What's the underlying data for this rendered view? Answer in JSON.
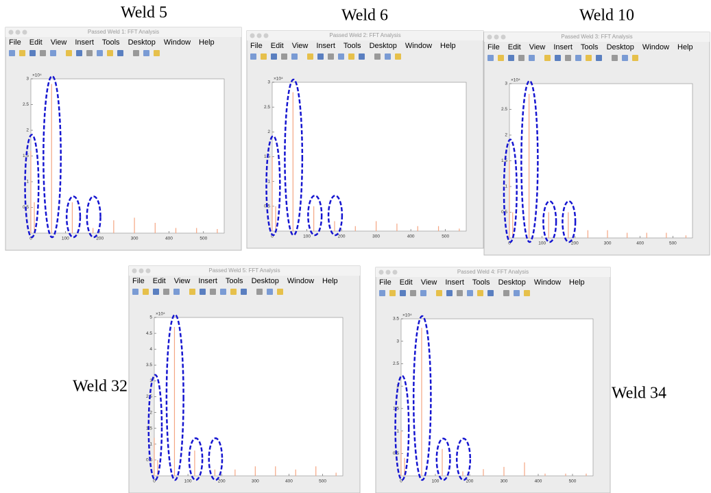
{
  "menu": [
    "File",
    "Edit",
    "View",
    "Insert",
    "Tools",
    "Desktop",
    "Window",
    "Help"
  ],
  "chart_data": [
    {
      "type": "stem",
      "label": "Weld 5",
      "window_title": "Passed Weld 1: FFT Analysis",
      "y_multiplier": "×10⁴",
      "color": "#f4a582",
      "x": [
        0,
        10,
        60,
        120,
        180,
        240,
        300,
        360,
        420,
        480,
        540
      ],
      "values": [
        1.6,
        0.6,
        2.9,
        0.6,
        0.1,
        0.25,
        0.3,
        0.2,
        0.1,
        0.1,
        0.08
      ],
      "xlim": [
        0,
        560
      ],
      "ylim": [
        0,
        3
      ],
      "xticks": [
        0,
        100,
        200,
        300,
        400,
        500
      ],
      "yticks": [
        0.5,
        1,
        1.5,
        2,
        2.5,
        3
      ]
    },
    {
      "type": "stem",
      "label": "Weld 6",
      "window_title": "Passed Weld 2: FFT Analysis",
      "y_multiplier": "×10⁴",
      "color": "#f4a582",
      "x": [
        0,
        10,
        60,
        120,
        180,
        240,
        300,
        360,
        420,
        480,
        540
      ],
      "values": [
        1.5,
        0.5,
        2.8,
        0.5,
        0.2,
        0.1,
        0.2,
        0.15,
        0.1,
        0.1,
        0.05
      ],
      "xlim": [
        0,
        560
      ],
      "ylim": [
        0,
        3
      ],
      "xticks": [
        0,
        100,
        200,
        300,
        400,
        500
      ],
      "yticks": [
        0.5,
        1,
        1.5,
        2,
        2.5,
        3
      ]
    },
    {
      "type": "stem",
      "label": "Weld 10",
      "window_title": "Passed Weld 3: FFT Analysis",
      "y_multiplier": "×10⁴",
      "color": "#f4a582",
      "x": [
        0,
        10,
        60,
        120,
        180,
        240,
        300,
        360,
        420,
        480,
        540
      ],
      "values": [
        1.5,
        0.5,
        2.8,
        0.5,
        0.5,
        0.15,
        0.15,
        0.1,
        0.1,
        0.1,
        0.05
      ],
      "xlim": [
        0,
        560
      ],
      "ylim": [
        0,
        3
      ],
      "xticks": [
        0,
        100,
        200,
        300,
        400,
        500
      ],
      "yticks": [
        0.5,
        1,
        1.5,
        2,
        2.5,
        3
      ]
    },
    {
      "type": "stem",
      "label": "Weld 32",
      "window_title": "Passed Weld 5: FFT Analysis",
      "y_multiplier": "×10⁴",
      "color": "#f4a582",
      "x": [
        0,
        10,
        60,
        120,
        180,
        240,
        300,
        360,
        420,
        480,
        540
      ],
      "values": [
        1.2,
        0.5,
        4.7,
        0.8,
        0.2,
        0.2,
        0.3,
        0.3,
        0.2,
        0.3,
        0.1
      ],
      "xlim": [
        0,
        560
      ],
      "ylim": [
        0,
        5
      ],
      "xticks": [
        0,
        100,
        200,
        300,
        400,
        500
      ],
      "yticks": [
        0.5,
        1,
        1.5,
        2,
        2.5,
        3,
        3.5,
        4,
        4.5,
        5
      ]
    },
    {
      "type": "stem",
      "label": "Weld 34",
      "window_title": "Passed Weld 4: FFT Analysis",
      "y_multiplier": "×10⁴",
      "color": "#f4a582",
      "x": [
        0,
        10,
        60,
        120,
        180,
        240,
        300,
        360,
        420,
        480,
        540
      ],
      "values": [
        1.0,
        0.4,
        3.3,
        0.6,
        0.1,
        0.15,
        0.2,
        0.3,
        0.05,
        0.05,
        0.05
      ],
      "xlim": [
        0,
        560
      ],
      "ylim": [
        0,
        3.5
      ],
      "xticks": [
        0,
        100,
        200,
        300,
        400,
        500
      ],
      "yticks": [
        0.5,
        1,
        1.5,
        2,
        2.5,
        3,
        3.5
      ]
    }
  ]
}
